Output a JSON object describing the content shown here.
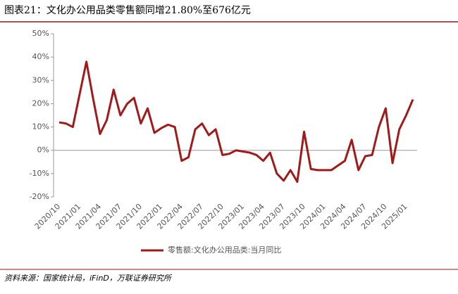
{
  "chart_data": {
    "type": "line",
    "title": "图表21：文化办公用品类零售额同增21.80%至676亿元",
    "source": "资料来源：国家统计局，iFinD，万联证券研究所",
    "categories": [
      "2020/10",
      null,
      null,
      "2021/01",
      null,
      null,
      "2021/04",
      null,
      null,
      "2021/07",
      null,
      null,
      "2021/10",
      null,
      null,
      "2022/01",
      null,
      null,
      "2022/04",
      null,
      null,
      "2022/07",
      null,
      null,
      "2022/10",
      null,
      null,
      "2023/01",
      null,
      null,
      "2023/04",
      null,
      null,
      "2023/07",
      null,
      null,
      "2023/10",
      null,
      null,
      "2024/01",
      null,
      null,
      "2024/04",
      null,
      null,
      "2024/07",
      null,
      null,
      "2024/10",
      null,
      null,
      "2025/01",
      null
    ],
    "series": [
      {
        "name": "零售额:文化办公用品类:当月同比",
        "color": "#a11a1a",
        "values": [
          12,
          11.5,
          10,
          24,
          38,
          22,
          7,
          13,
          26,
          15,
          20,
          22.5,
          11.5,
          18,
          7.5,
          9.5,
          11,
          10,
          -4.5,
          -3,
          9,
          11.5,
          6.5,
          9,
          -2,
          -1.5,
          0,
          -0.5,
          -1,
          -2,
          -4.5,
          -1,
          -10,
          -13,
          -8.5,
          -13.5,
          8,
          -8,
          -8.5,
          -8.5,
          -8.5,
          -6.5,
          -4.5,
          4.5,
          -8.5,
          -2.5,
          -2,
          10,
          18,
          -5.5,
          9,
          15,
          21.8
        ]
      }
    ],
    "ylim": [
      -20,
      50
    ],
    "yticks": [
      {
        "value": -20,
        "label": "-20%"
      },
      {
        "value": -10,
        "label": "-10%"
      },
      {
        "value": 0,
        "label": "0%"
      },
      {
        "value": 10,
        "label": "10%"
      },
      {
        "value": 20,
        "label": "20%"
      },
      {
        "value": 30,
        "label": "30%"
      },
      {
        "value": 40,
        "label": "40%"
      },
      {
        "value": 50,
        "label": "50%"
      }
    ],
    "legend": "bottom"
  }
}
